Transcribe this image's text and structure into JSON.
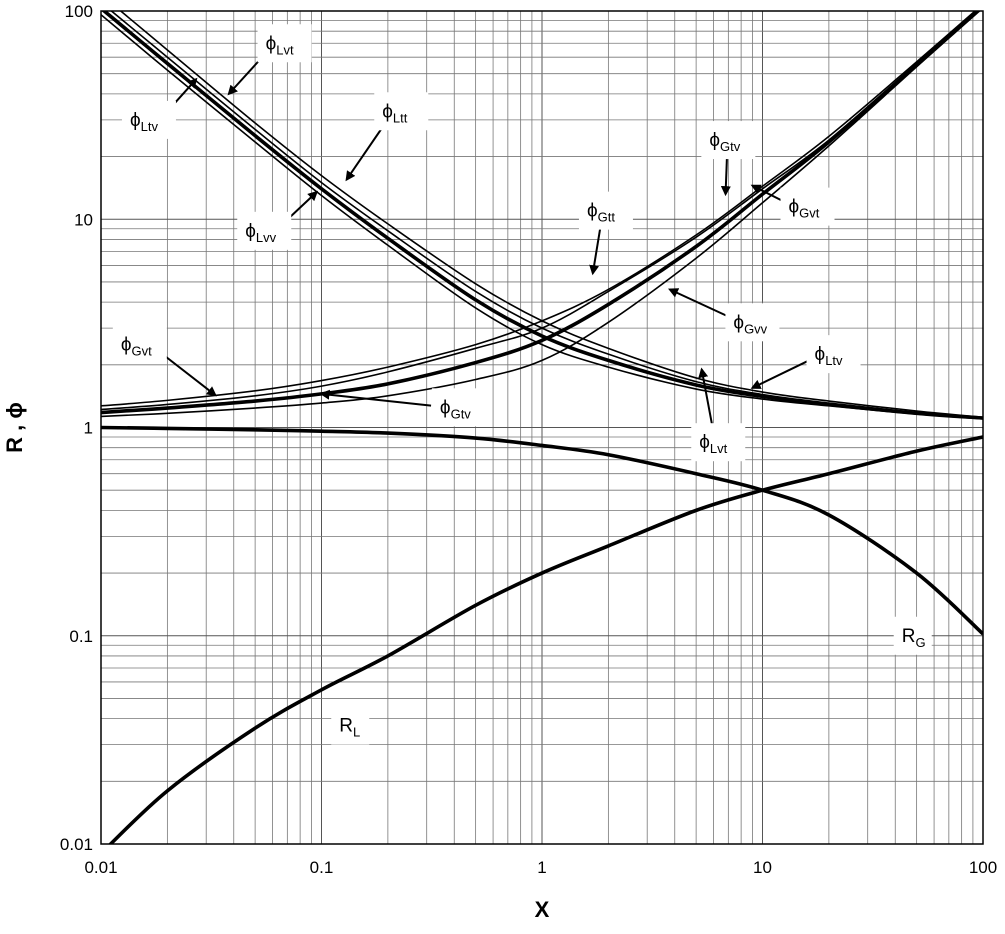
{
  "chart_data": {
    "type": "line",
    "xlabel": "X",
    "ylabel": "R , ϕ",
    "xscale": "log",
    "yscale": "log",
    "xlim": [
      0.01,
      100
    ],
    "ylim": [
      0.01,
      100
    ],
    "grid": true,
    "x_ticks": [
      {
        "value": 0.01,
        "label": "0.01"
      },
      {
        "value": 0.1,
        "label": "0.1"
      },
      {
        "value": 1,
        "label": "1"
      },
      {
        "value": 10,
        "label": "10"
      },
      {
        "value": 100,
        "label": "100"
      }
    ],
    "y_ticks": [
      {
        "value": 0.01,
        "label": "0.01"
      },
      {
        "value": 0.1,
        "label": "0.1"
      },
      {
        "value": 1,
        "label": "1"
      },
      {
        "value": 10,
        "label": "10"
      },
      {
        "value": 100,
        "label": "100"
      }
    ],
    "x": [
      0.01,
      0.02,
      0.05,
      0.1,
      0.2,
      0.5,
      1,
      2,
      5,
      10,
      20,
      50,
      100
    ],
    "series": [
      {
        "name": "phi_Ltt",
        "style": "thin",
        "values": [
          120,
          65,
          29,
          16.2,
          9.5,
          4.9,
          3.25,
          2.4,
          1.73,
          1.48,
          1.34,
          1.2,
          1.12
        ]
      },
      {
        "name": "phi_Lvt",
        "style": "thin",
        "values": [
          110,
          60,
          27,
          15.0,
          8.8,
          4.5,
          3.0,
          2.25,
          1.66,
          1.44,
          1.31,
          1.18,
          1.11
        ]
      },
      {
        "name": "phi_Ltv",
        "style": "thick",
        "values": [
          103,
          56,
          25.2,
          14.0,
          8.1,
          4.1,
          2.75,
          2.1,
          1.6,
          1.41,
          1.29,
          1.17,
          1.11
        ]
      },
      {
        "name": "phi_Lvv",
        "style": "thin",
        "values": [
          96,
          52,
          23.5,
          13.0,
          7.5,
          3.75,
          2.5,
          1.95,
          1.53,
          1.37,
          1.27,
          1.16,
          1.1
        ]
      },
      {
        "name": "phi_Gvt",
        "style": "thin",
        "values": [
          1.27,
          1.35,
          1.5,
          1.68,
          1.95,
          2.5,
          3.25,
          4.6,
          8.4,
          14.4,
          25,
          57,
          108
        ]
      },
      {
        "name": "phi_Gtt",
        "style": "thin",
        "values": [
          1.22,
          1.29,
          1.42,
          1.58,
          1.85,
          2.4,
          3.0,
          4.5,
          8.2,
          14.0,
          24,
          56,
          106
        ]
      },
      {
        "name": "phi_Gtv",
        "style": "thick",
        "values": [
          1.18,
          1.24,
          1.34,
          1.45,
          1.62,
          2.05,
          2.62,
          3.9,
          7.4,
          13.2,
          23.5,
          55,
          105
        ]
      },
      {
        "name": "phi_Gvv",
        "style": "thin",
        "values": [
          1.13,
          1.17,
          1.24,
          1.31,
          1.42,
          1.7,
          2.1,
          3.2,
          6.5,
          12.0,
          22.5,
          54,
          104
        ]
      },
      {
        "name": "R_G",
        "style": "thick",
        "values": [
          1.0,
          0.99,
          0.975,
          0.96,
          0.94,
          0.89,
          0.82,
          0.74,
          0.6,
          0.5,
          0.38,
          0.2,
          0.102
        ]
      },
      {
        "name": "R_L",
        "style": "thick",
        "values": [
          0.009,
          0.018,
          0.036,
          0.055,
          0.08,
          0.14,
          0.2,
          0.27,
          0.4,
          0.5,
          0.6,
          0.77,
          0.9
        ]
      }
    ],
    "annotations": [
      {
        "base": "ϕ",
        "sub": "Lvt",
        "lx": 0.068,
        "ly": 70,
        "ax": 0.038,
        "ay": 40,
        "arrow": true
      },
      {
        "base": "ϕ",
        "sub": "Ltv",
        "lx": 0.0165,
        "ly": 30,
        "ax": 0.027,
        "ay": 47,
        "arrow": true
      },
      {
        "base": "ϕ",
        "sub": "Ltt",
        "lx": 0.23,
        "ly": 33,
        "ax": 0.13,
        "ay": 15.5,
        "arrow": true
      },
      {
        "base": "ϕ",
        "sub": "Lvv",
        "lx": 0.055,
        "ly": 8.8,
        "ax": 0.095,
        "ay": 13.5,
        "arrow": true
      },
      {
        "base": "ϕ",
        "sub": "Gtt",
        "lx": 1.95,
        "ly": 11.0,
        "ax": 1.7,
        "ay": 5.5,
        "arrow": true
      },
      {
        "base": "ϕ",
        "sub": "Gtv",
        "lx": 7.0,
        "ly": 24,
        "ax": 6.8,
        "ay": 13.2,
        "arrow": true
      },
      {
        "base": "ϕ",
        "sub": "Gvt",
        "lx": 16,
        "ly": 11.5,
        "ax": 9.0,
        "ay": 14.5,
        "arrow": true
      },
      {
        "base": "ϕ",
        "sub": "Gvv",
        "lx": 9.0,
        "ly": 3.2,
        "ax": 3.8,
        "ay": 4.6,
        "arrow": true
      },
      {
        "base": "ϕ",
        "sub": "Gvt",
        "lx": 0.015,
        "ly": 2.5,
        "ax": 0.033,
        "ay": 1.43,
        "arrow": true
      },
      {
        "base": "ϕ",
        "sub": "Gtv",
        "lx": 0.42,
        "ly": 1.25,
        "ax": 0.1,
        "ay": 1.45,
        "arrow": true
      },
      {
        "base": "ϕ",
        "sub": "Ltv",
        "lx": 21,
        "ly": 2.25,
        "ax": 9.0,
        "ay": 1.55,
        "arrow": true
      },
      {
        "base": "ϕ",
        "sub": "Lvt",
        "lx": 6.3,
        "ly": 0.85,
        "ax": 5.3,
        "ay": 1.9,
        "arrow": true
      },
      {
        "base": "R",
        "sub": "G",
        "lx": 48,
        "ly": 0.1,
        "arrow": false
      },
      {
        "base": "R",
        "sub": "L",
        "lx": 0.135,
        "ly": 0.037,
        "arrow": false
      }
    ]
  }
}
